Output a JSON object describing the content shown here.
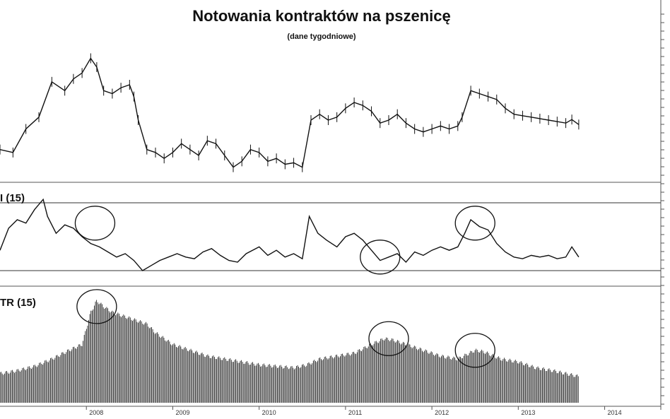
{
  "chart_data": {
    "type": "line",
    "title": "Notowania kontraktów na pszenicę",
    "subtitle": "(dane tygodniowe)",
    "x_tick_labels": [
      "2008",
      "2009",
      "2010",
      "2011",
      "2012",
      "2013",
      "2014"
    ],
    "panels": [
      {
        "name": "price",
        "series_type": "weekly-bars",
        "points": [
          [
            2007.0,
            620
          ],
          [
            2007.15,
            610
          ],
          [
            2007.3,
            690
          ],
          [
            2007.45,
            730
          ],
          [
            2007.6,
            850
          ],
          [
            2007.75,
            820
          ],
          [
            2007.85,
            860
          ],
          [
            2007.95,
            880
          ],
          [
            2008.05,
            930
          ],
          [
            2008.12,
            900
          ],
          [
            2008.2,
            820
          ],
          [
            2008.3,
            810
          ],
          [
            2008.4,
            830
          ],
          [
            2008.5,
            840
          ],
          [
            2008.55,
            800
          ],
          [
            2008.6,
            720
          ],
          [
            2008.7,
            620
          ],
          [
            2008.8,
            610
          ],
          [
            2008.9,
            590
          ],
          [
            2009.0,
            610
          ],
          [
            2009.1,
            640
          ],
          [
            2009.2,
            620
          ],
          [
            2009.3,
            600
          ],
          [
            2009.4,
            650
          ],
          [
            2009.5,
            640
          ],
          [
            2009.6,
            600
          ],
          [
            2009.7,
            560
          ],
          [
            2009.8,
            580
          ],
          [
            2009.9,
            620
          ],
          [
            2010.0,
            610
          ],
          [
            2010.1,
            580
          ],
          [
            2010.2,
            590
          ],
          [
            2010.3,
            570
          ],
          [
            2010.4,
            575
          ],
          [
            2010.5,
            560
          ],
          [
            2010.6,
            720
          ],
          [
            2010.7,
            740
          ],
          [
            2010.8,
            720
          ],
          [
            2010.9,
            730
          ],
          [
            2011.0,
            760
          ],
          [
            2011.1,
            780
          ],
          [
            2011.2,
            770
          ],
          [
            2011.3,
            750
          ],
          [
            2011.4,
            710
          ],
          [
            2011.5,
            720
          ],
          [
            2011.6,
            740
          ],
          [
            2011.7,
            710
          ],
          [
            2011.8,
            690
          ],
          [
            2011.9,
            680
          ],
          [
            2012.0,
            690
          ],
          [
            2012.1,
            700
          ],
          [
            2012.2,
            690
          ],
          [
            2012.3,
            700
          ],
          [
            2012.35,
            730
          ],
          [
            2012.45,
            820
          ],
          [
            2012.55,
            810
          ],
          [
            2012.65,
            800
          ],
          [
            2012.75,
            790
          ],
          [
            2012.85,
            760
          ],
          [
            2012.95,
            740
          ],
          [
            2013.05,
            735
          ],
          [
            2013.15,
            730
          ],
          [
            2013.25,
            725
          ],
          [
            2013.35,
            720
          ],
          [
            2013.45,
            715
          ],
          [
            2013.55,
            710
          ],
          [
            2013.62,
            722
          ],
          [
            2013.7,
            705
          ]
        ],
        "ylim": [
          540,
          960
        ]
      },
      {
        "name": "RSI",
        "label": "I (15)",
        "points": [
          [
            2007.0,
            42
          ],
          [
            2007.1,
            55
          ],
          [
            2007.2,
            60
          ],
          [
            2007.3,
            58
          ],
          [
            2007.4,
            66
          ],
          [
            2007.5,
            72
          ],
          [
            2007.55,
            62
          ],
          [
            2007.65,
            52
          ],
          [
            2007.75,
            57
          ],
          [
            2007.85,
            55
          ],
          [
            2007.95,
            50
          ],
          [
            2008.05,
            46
          ],
          [
            2008.15,
            44
          ],
          [
            2008.25,
            41
          ],
          [
            2008.35,
            38
          ],
          [
            2008.45,
            40
          ],
          [
            2008.55,
            36
          ],
          [
            2008.65,
            30
          ],
          [
            2008.75,
            33
          ],
          [
            2008.85,
            36
          ],
          [
            2008.95,
            38
          ],
          [
            2009.05,
            40
          ],
          [
            2009.15,
            38
          ],
          [
            2009.25,
            37
          ],
          [
            2009.35,
            41
          ],
          [
            2009.45,
            43
          ],
          [
            2009.55,
            39
          ],
          [
            2009.65,
            36
          ],
          [
            2009.75,
            35
          ],
          [
            2009.85,
            40
          ],
          [
            2010.0,
            44
          ],
          [
            2010.1,
            39
          ],
          [
            2010.2,
            42
          ],
          [
            2010.3,
            38
          ],
          [
            2010.4,
            40
          ],
          [
            2010.5,
            37
          ],
          [
            2010.58,
            62
          ],
          [
            2010.68,
            52
          ],
          [
            2010.78,
            48
          ],
          [
            2010.9,
            44
          ],
          [
            2011.0,
            50
          ],
          [
            2011.1,
            52
          ],
          [
            2011.2,
            48
          ],
          [
            2011.3,
            42
          ],
          [
            2011.4,
            36
          ],
          [
            2011.5,
            38
          ],
          [
            2011.6,
            40
          ],
          [
            2011.7,
            35
          ],
          [
            2011.8,
            41
          ],
          [
            2011.9,
            39
          ],
          [
            2012.0,
            42
          ],
          [
            2012.1,
            44
          ],
          [
            2012.2,
            42
          ],
          [
            2012.3,
            44
          ],
          [
            2012.38,
            52
          ],
          [
            2012.45,
            60
          ],
          [
            2012.55,
            56
          ],
          [
            2012.65,
            54
          ],
          [
            2012.75,
            46
          ],
          [
            2012.85,
            41
          ],
          [
            2012.95,
            38
          ],
          [
            2013.05,
            37
          ],
          [
            2013.15,
            39
          ],
          [
            2013.25,
            38
          ],
          [
            2013.35,
            39
          ],
          [
            2013.45,
            37
          ],
          [
            2013.55,
            38
          ],
          [
            2013.62,
            44
          ],
          [
            2013.7,
            38
          ]
        ],
        "reference_lines": [
          70,
          30
        ],
        "ylim": [
          25,
          75
        ]
      },
      {
        "name": "ATR",
        "label": "TR (15)",
        "series_type": "histogram",
        "points": [
          [
            2007.0,
            20
          ],
          [
            2007.2,
            22
          ],
          [
            2007.4,
            25
          ],
          [
            2007.6,
            30
          ],
          [
            2007.8,
            36
          ],
          [
            2007.95,
            40
          ],
          [
            2008.05,
            62
          ],
          [
            2008.12,
            70
          ],
          [
            2008.2,
            66
          ],
          [
            2008.3,
            62
          ],
          [
            2008.4,
            60
          ],
          [
            2008.5,
            58
          ],
          [
            2008.6,
            56
          ],
          [
            2008.7,
            54
          ],
          [
            2008.8,
            48
          ],
          [
            2008.9,
            44
          ],
          [
            2009.0,
            40
          ],
          [
            2009.2,
            36
          ],
          [
            2009.4,
            32
          ],
          [
            2009.6,
            30
          ],
          [
            2009.8,
            28
          ],
          [
            2010.0,
            26
          ],
          [
            2010.2,
            25
          ],
          [
            2010.4,
            24
          ],
          [
            2010.55,
            26
          ],
          [
            2010.7,
            30
          ],
          [
            2010.9,
            32
          ],
          [
            2011.1,
            34
          ],
          [
            2011.3,
            40
          ],
          [
            2011.45,
            44
          ],
          [
            2011.55,
            43
          ],
          [
            2011.7,
            40
          ],
          [
            2011.9,
            36
          ],
          [
            2012.1,
            32
          ],
          [
            2012.3,
            30
          ],
          [
            2012.5,
            36
          ],
          [
            2012.6,
            35
          ],
          [
            2012.8,
            30
          ],
          [
            2013.0,
            28
          ],
          [
            2013.2,
            24
          ],
          [
            2013.4,
            22
          ],
          [
            2013.55,
            20
          ],
          [
            2013.7,
            18
          ]
        ],
        "ylim": [
          0,
          80
        ]
      }
    ],
    "annotations": [
      {
        "type": "circle",
        "panel": "RSI",
        "x": 2008.1,
        "y": 58
      },
      {
        "type": "circle",
        "panel": "RSI",
        "x": 2011.4,
        "y": 38
      },
      {
        "type": "circle",
        "panel": "RSI",
        "x": 2012.5,
        "y": 58
      },
      {
        "type": "circle",
        "panel": "ATR",
        "x": 2008.12,
        "y": 66
      },
      {
        "type": "circle",
        "panel": "ATR",
        "x": 2011.5,
        "y": 44
      },
      {
        "type": "circle",
        "panel": "ATR",
        "x": 2012.5,
        "y": 36
      }
    ],
    "grid": false,
    "style": {
      "line_color": "#111111",
      "axis_color": "#555555",
      "background": "#ffffff"
    }
  }
}
